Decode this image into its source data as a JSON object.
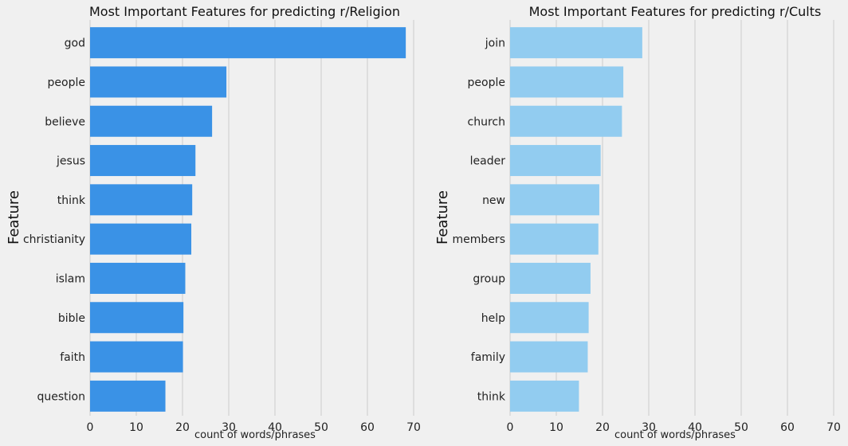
{
  "chart_data": [
    {
      "type": "bar",
      "orientation": "horizontal",
      "title": "Most Important Features for predicting r/Religion",
      "xlabel": "count of words/phrases",
      "ylabel": "Feature",
      "xlim": [
        0,
        72
      ],
      "xticks": [
        0,
        10,
        20,
        30,
        40,
        50,
        60,
        70
      ],
      "grid": "vertical",
      "color": "#3a92e6",
      "categories": [
        "god",
        "people",
        "believe",
        "jesus",
        "think",
        "christianity",
        "islam",
        "bible",
        "faith",
        "question"
      ],
      "values": [
        68.3,
        29.5,
        26.4,
        22.8,
        22.1,
        21.9,
        20.6,
        20.2,
        20.1,
        16.3
      ]
    },
    {
      "type": "bar",
      "orientation": "horizontal",
      "title": "Most Important Features for predicting r/Cults",
      "xlabel": "count of words/phrases",
      "ylabel": "Feature",
      "xlim": [
        0,
        72
      ],
      "xticks": [
        0,
        10,
        20,
        30,
        40,
        50,
        60,
        70
      ],
      "grid": "vertical",
      "color": "#92ccf0",
      "categories": [
        "join",
        "people",
        "church",
        "leader",
        "new",
        "members",
        "group",
        "help",
        "family",
        "think"
      ],
      "values": [
        28.6,
        24.5,
        24.2,
        19.6,
        19.3,
        19.1,
        17.4,
        17.0,
        16.8,
        14.9
      ]
    }
  ]
}
